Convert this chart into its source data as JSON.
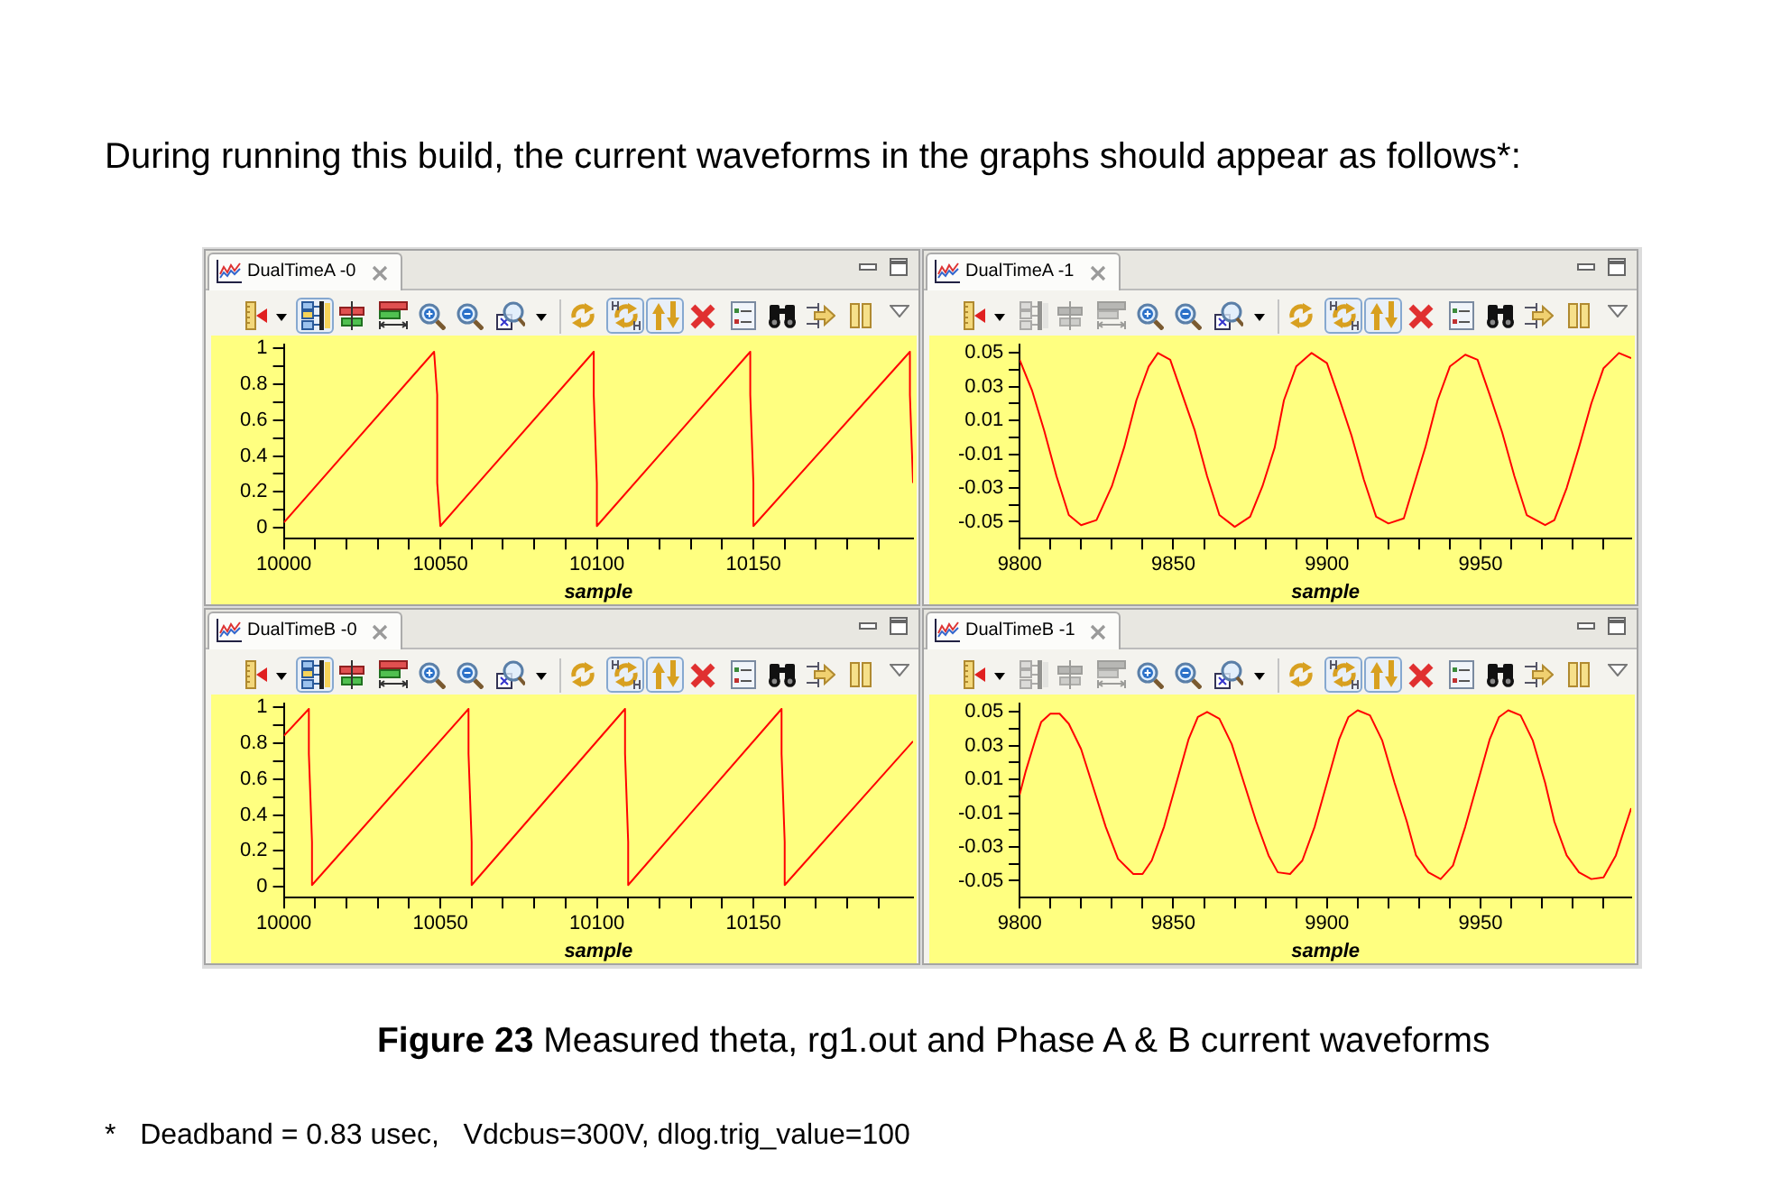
{
  "chart_data": [
    {
      "type": "line",
      "title": "DualTimeA -0",
      "xlabel": "sample",
      "annotations": [
        "During running this build, the current waveforms in the graphs should appear as follows*:",
        "Figure 23 Measured theta, rg1.out and Phase A & B current waveforms",
        "*   Deadband = 0.83 usec,   Vdcbus=300V, dlog.trig_value=100"
      ],
      "xlim": [
        10000,
        10201
      ],
      "xticks": [
        10000,
        {
          "value": 10010,
          "label": null
        },
        {
          "value": 10020,
          "label": null
        },
        {
          "value": 10030,
          "label": null
        },
        {
          "value": 10040,
          "label": null
        },
        10050,
        {
          "value": 10060,
          "label": null
        },
        {
          "value": 10070,
          "label": null
        },
        {
          "value": 10080,
          "label": null
        },
        {
          "value": 10090,
          "label": null
        },
        10100,
        {
          "value": 10110,
          "label": null
        },
        {
          "value": 10120,
          "label": null
        },
        {
          "value": 10130,
          "label": null
        },
        {
          "value": 10140,
          "label": null
        },
        10150,
        {
          "value": 10160,
          "label": null
        },
        {
          "value": 10170,
          "label": null
        },
        {
          "value": 10180,
          "label": null
        },
        {
          "value": 10190,
          "label": null
        }
      ],
      "ylim": [
        -0.06,
        1.02
      ],
      "yticks": [
        0,
        {
          "value": 0.1,
          "label": null
        },
        0.2,
        {
          "value": 0.3,
          "label": null
        },
        0.4,
        {
          "value": 0.5,
          "label": null
        },
        0.6,
        {
          "value": 0.7,
          "label": null
        },
        0.8,
        {
          "value": 0.9,
          "label": null
        },
        1
      ],
      "marker": "none",
      "series": [
        {
          "color": "#ff0000",
          "x": [
            10000,
            10048,
            10049,
            10049,
            10050,
            10099,
            10099,
            10100,
            10100,
            10149,
            10149,
            10150,
            10150,
            10200,
            10200,
            10201
          ],
          "values": [
            0.03,
            0.98,
            0.74,
            0.25,
            0.01,
            0.98,
            0.74,
            0.25,
            0.01,
            0.98,
            0.74,
            0.25,
            0.01,
            0.98,
            0.74,
            0.25
          ]
        }
      ]
    },
    {
      "type": "line",
      "title": "DualTimeA -1",
      "xlabel": "sample",
      "xlim": [
        9800,
        9999
      ],
      "xticks": [
        9800,
        {
          "value": 9810,
          "label": null
        },
        {
          "value": 9820,
          "label": null
        },
        {
          "value": 9830,
          "label": null
        },
        {
          "value": 9840,
          "label": null
        },
        9850,
        {
          "value": 9860,
          "label": null
        },
        {
          "value": 9870,
          "label": null
        },
        {
          "value": 9880,
          "label": null
        },
        {
          "value": 9890,
          "label": null
        },
        9900,
        {
          "value": 9910,
          "label": null
        },
        {
          "value": 9920,
          "label": null
        },
        {
          "value": 9930,
          "label": null
        },
        {
          "value": 9940,
          "label": null
        },
        9950,
        {
          "value": 9960,
          "label": null
        },
        {
          "value": 9970,
          "label": null
        },
        {
          "value": 9980,
          "label": null
        },
        {
          "value": 9990,
          "label": null
        }
      ],
      "ylim": [
        -0.06,
        0.055
      ],
      "yticks": [
        -0.05,
        {
          "value": -0.04,
          "label": null
        },
        -0.03,
        {
          "value": -0.02,
          "label": null
        },
        -0.01,
        {
          "value": 0,
          "label": null
        },
        0.01,
        {
          "value": 0.02,
          "label": null
        },
        0.03,
        {
          "value": 0.04,
          "label": null
        },
        0.05
      ],
      "marker": "none",
      "series": [
        {
          "color": "#ff0000",
          "x": [
            9800,
            9804,
            9808,
            9812,
            9816,
            9820,
            9825,
            9830,
            9834,
            9838,
            9842,
            9845,
            9849,
            9853,
            9857,
            9861,
            9865,
            9870,
            9875,
            9879,
            9883,
            9886,
            9890,
            9895,
            9900,
            9904,
            9908,
            9912,
            9916,
            9920,
            9925,
            9928,
            9932,
            9936,
            9940,
            9945,
            9949,
            9953,
            9957,
            9961,
            9965,
            9971,
            9974,
            9978,
            9982,
            9986,
            9990,
            9995,
            9999
          ],
          "values": [
            0.046,
            0.028,
            0.004,
            -0.023,
            -0.046,
            -0.052,
            -0.049,
            -0.029,
            -0.006,
            0.022,
            0.042,
            0.05,
            0.046,
            0.025,
            0.004,
            -0.023,
            -0.046,
            -0.053,
            -0.047,
            -0.029,
            -0.006,
            0.022,
            0.042,
            0.05,
            0.044,
            0.023,
            0.001,
            -0.025,
            -0.047,
            -0.051,
            -0.048,
            -0.03,
            -0.006,
            0.022,
            0.042,
            0.049,
            0.046,
            0.025,
            0.003,
            -0.023,
            -0.046,
            -0.052,
            -0.049,
            -0.03,
            -0.006,
            0.02,
            0.041,
            0.05,
            0.047
          ]
        }
      ]
    },
    {
      "type": "line",
      "title": "DualTimeB -0",
      "xlabel": "sample",
      "xlim": [
        10000,
        10201
      ],
      "xticks": [
        10000,
        {
          "value": 10010,
          "label": null
        },
        {
          "value": 10020,
          "label": null
        },
        {
          "value": 10030,
          "label": null
        },
        {
          "value": 10040,
          "label": null
        },
        10050,
        {
          "value": 10060,
          "label": null
        },
        {
          "value": 10070,
          "label": null
        },
        {
          "value": 10080,
          "label": null
        },
        {
          "value": 10090,
          "label": null
        },
        10100,
        {
          "value": 10110,
          "label": null
        },
        {
          "value": 10120,
          "label": null
        },
        {
          "value": 10130,
          "label": null
        },
        {
          "value": 10140,
          "label": null
        },
        10150,
        {
          "value": 10160,
          "label": null
        },
        {
          "value": 10170,
          "label": null
        },
        {
          "value": 10180,
          "label": null
        },
        {
          "value": 10190,
          "label": null
        }
      ],
      "ylim": [
        -0.06,
        1.02
      ],
      "yticks": [
        0,
        {
          "value": 0.1,
          "label": null
        },
        0.2,
        {
          "value": 0.3,
          "label": null
        },
        0.4,
        {
          "value": 0.5,
          "label": null
        },
        0.6,
        {
          "value": 0.7,
          "label": null
        },
        0.8,
        {
          "value": 0.9,
          "label": null
        },
        1
      ],
      "marker": "none",
      "series": [
        {
          "color": "#ff0000",
          "x": [
            10000,
            10008,
            10008,
            10009,
            10009,
            10059,
            10059,
            10060,
            10060,
            10109,
            10109,
            10110,
            10110,
            10159,
            10159,
            10160,
            10160,
            10201
          ],
          "values": [
            0.84,
            0.99,
            0.74,
            0.25,
            0.01,
            0.99,
            0.74,
            0.25,
            0.01,
            0.99,
            0.74,
            0.25,
            0.01,
            0.99,
            0.74,
            0.25,
            0.01,
            0.81
          ]
        }
      ]
    },
    {
      "type": "line",
      "title": "DualTimeB -1",
      "xlabel": "sample",
      "xlim": [
        9800,
        9999
      ],
      "xticks": [
        9800,
        {
          "value": 9810,
          "label": null
        },
        {
          "value": 9820,
          "label": null
        },
        {
          "value": 9830,
          "label": null
        },
        {
          "value": 9840,
          "label": null
        },
        9850,
        {
          "value": 9860,
          "label": null
        },
        {
          "value": 9870,
          "label": null
        },
        {
          "value": 9880,
          "label": null
        },
        {
          "value": 9890,
          "label": null
        },
        9900,
        {
          "value": 9910,
          "label": null
        },
        {
          "value": 9920,
          "label": null
        },
        {
          "value": 9930,
          "label": null
        },
        {
          "value": 9940,
          "label": null
        },
        9950,
        {
          "value": 9960,
          "label": null
        },
        {
          "value": 9970,
          "label": null
        },
        {
          "value": 9980,
          "label": null
        },
        {
          "value": 9990,
          "label": null
        }
      ],
      "ylim": [
        -0.06,
        0.055
      ],
      "yticks": [
        -0.05,
        {
          "value": -0.04,
          "label": null
        },
        -0.03,
        {
          "value": -0.02,
          "label": null
        },
        -0.01,
        {
          "value": 0,
          "label": null
        },
        0.01,
        {
          "value": 0.02,
          "label": null
        },
        0.03,
        {
          "value": 0.04,
          "label": null
        },
        0.05
      ],
      "marker": "none",
      "series": [
        {
          "color": "#ff0000",
          "x": [
            9800,
            9802,
            9805,
            9807,
            9810,
            9813,
            9816,
            9820,
            9824,
            9828,
            9832,
            9837,
            9840,
            9843,
            9847,
            9851,
            9855,
            9858,
            9861,
            9865,
            9869,
            9873,
            9877,
            9881,
            9884,
            9888,
            9892,
            9896,
            9900,
            9904,
            9907,
            9910,
            9914,
            9918,
            9922,
            9926,
            9929,
            9933,
            9937,
            9941,
            9945,
            9949,
            9953,
            9956,
            9959,
            9963,
            9967,
            9971,
            9974,
            9978,
            9982,
            9986,
            9990,
            9994,
            9999
          ],
          "values": [
            0.001,
            0.015,
            0.033,
            0.044,
            0.049,
            0.049,
            0.043,
            0.028,
            0.005,
            -0.018,
            -0.037,
            -0.046,
            -0.046,
            -0.038,
            -0.018,
            0.008,
            0.034,
            0.047,
            0.05,
            0.046,
            0.031,
            0.008,
            -0.015,
            -0.035,
            -0.045,
            -0.046,
            -0.038,
            -0.018,
            0.008,
            0.034,
            0.047,
            0.051,
            0.048,
            0.033,
            0.008,
            -0.015,
            -0.035,
            -0.045,
            -0.049,
            -0.041,
            -0.018,
            0.008,
            0.034,
            0.047,
            0.051,
            0.048,
            0.033,
            0.008,
            -0.015,
            -0.035,
            -0.045,
            -0.049,
            -0.048,
            -0.035,
            -0.007
          ]
        }
      ]
    }
  ]
}
